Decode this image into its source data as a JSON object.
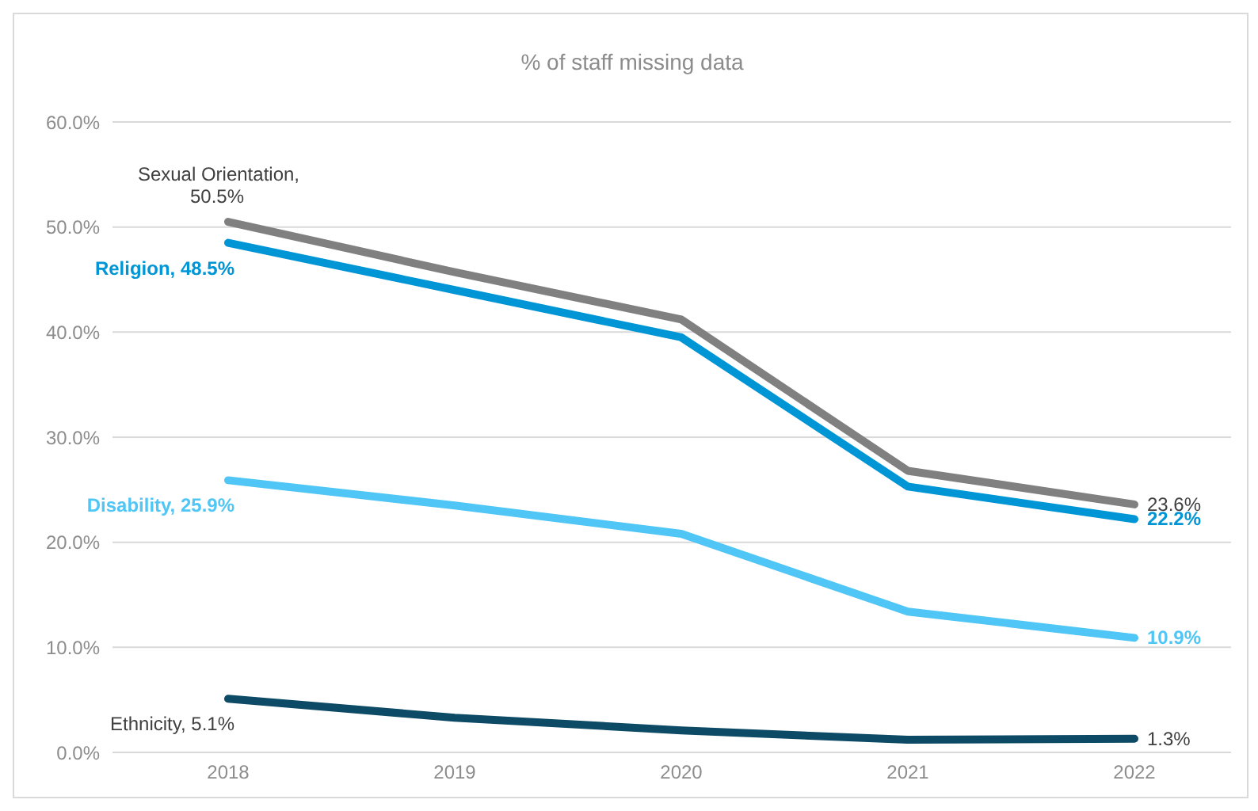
{
  "chart_data": {
    "type": "line",
    "title": "% of staff missing data",
    "categories": [
      "2018",
      "2019",
      "2020",
      "2021",
      "2022"
    ],
    "series": [
      {
        "color": "#808080",
        "values": [
          50.5,
          45.7,
          41.2,
          26.8,
          23.6
        ]
      },
      {
        "color": "#0096d6",
        "values": [
          48.5,
          44.0,
          39.5,
          25.3,
          22.2
        ]
      },
      {
        "color": "#4fc6f5",
        "values": [
          25.9,
          23.5,
          20.8,
          13.4,
          10.9
        ]
      },
      {
        "color": "#0c4a66",
        "values": [
          5.1,
          3.3,
          2.1,
          1.2,
          1.3
        ]
      }
    ],
    "ylim": [
      0,
      60
    ],
    "yticks": [
      {
        "value": 0,
        "label": "0.0%"
      },
      {
        "value": 10,
        "label": "10.0%"
      },
      {
        "value": 20,
        "label": "20.0%"
      },
      {
        "value": 30,
        "label": "30.0%"
      },
      {
        "value": 40,
        "label": "40.0%"
      },
      {
        "value": 50,
        "label": "50.0%"
      },
      {
        "value": 60,
        "label": "60.0%"
      }
    ],
    "grid": "y",
    "marker": "none",
    "line_style": "solid",
    "legend": false,
    "annotations": [
      {
        "text": "Sexual Orientation, 50.5%",
        "x": "2018",
        "y": 50.5
      },
      {
        "text": "Religion, 48.5%",
        "x": "2018",
        "y": 48.5
      },
      {
        "text": "Disability, 25.9%",
        "x": "2018",
        "y": 25.9
      },
      {
        "text": "Ethnicity, 5.1%",
        "x": "2018",
        "y": 5.1
      },
      {
        "text": "23.6%",
        "x": "2022",
        "y": 23.6
      },
      {
        "text": "22.2%",
        "x": "2022",
        "y": 22.2
      },
      {
        "text": "10.9%",
        "x": "2022",
        "y": 10.9
      },
      {
        "text": "1.3%",
        "x": "2022",
        "y": 1.3
      }
    ]
  }
}
